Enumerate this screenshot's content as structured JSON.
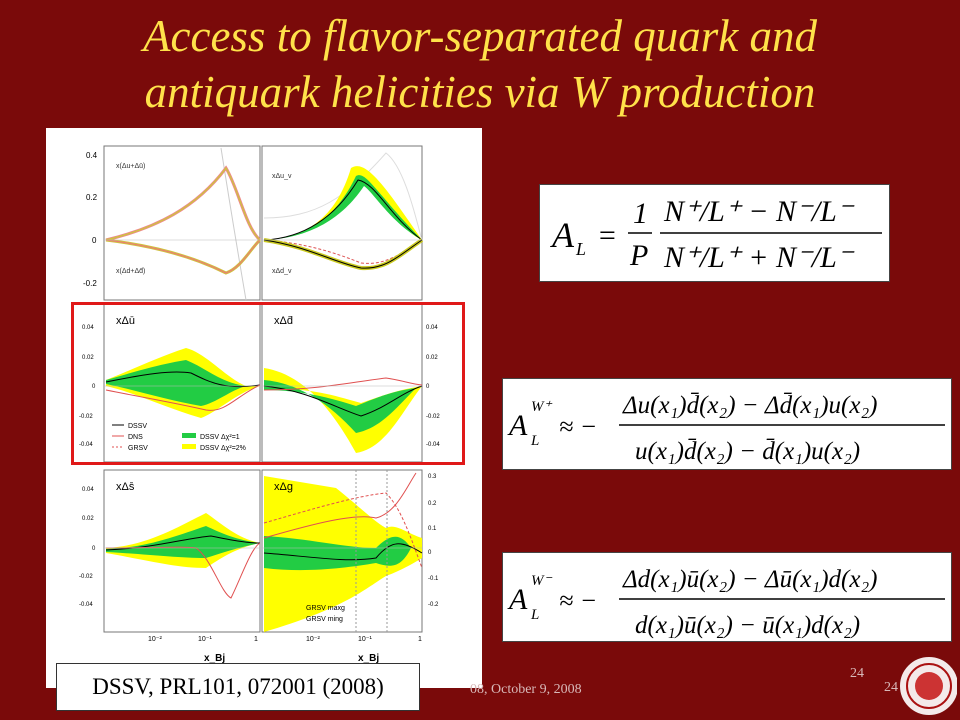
{
  "slide": {
    "title_line1": "Access to flavor-separated quark and",
    "title_line2": "antiquark helicities via W production",
    "caption": "DSSV, PRL101, 072001 (2008)",
    "footer_text": "08, October 9, 2008",
    "page_number_small": "24",
    "page_number_partial": "24"
  },
  "figure": {
    "panels": [
      {
        "label": "x(Δu+Δū)"
      },
      {
        "label": "x(Δd+Δd̄)"
      },
      {
        "label": "xΔu_v"
      },
      {
        "label": "xΔd_v"
      },
      {
        "label": "xΔū"
      },
      {
        "label": "xΔd̄"
      },
      {
        "label": "xΔs̄"
      },
      {
        "label": "xΔg"
      }
    ],
    "left_ticks_top": [
      "0.4",
      "0.2",
      "0",
      "-0.2"
    ],
    "left_ticks_mid": [
      "0.04",
      "0.02",
      "0",
      "-0.02",
      "-0.04"
    ],
    "right_ticks_g": [
      "0.3",
      "0.2",
      "0.1",
      "0",
      "-0.1",
      "-0.2"
    ],
    "x_ticks": [
      "10⁻²",
      "10⁻¹",
      "1"
    ],
    "x_axis_label": "x_Bj",
    "legend_lines": [
      "DSSV",
      "DNS",
      "GRSV"
    ],
    "legend_bands": [
      "DSSV Δχ²=1",
      "DSSV Δχ²=2%"
    ],
    "legend_g": [
      "GRSV maxg",
      "GRSV ming"
    ],
    "colors": {
      "band_outer": "#ffff00",
      "band_inner": "#00cc33",
      "dssv": "#000000",
      "dns": "#e05050",
      "grsv": "#e05050"
    }
  },
  "equations": {
    "AL": {
      "lhs": "A_L",
      "prefactor": "1/P",
      "num": "N⁺/L⁺ − N⁻/L⁻",
      "den": "N⁺/L⁺ + N⁻/L⁻"
    },
    "AW_plus": {
      "lhs": "A_L^{W⁺}",
      "num": "Δu(x₁)d̄(x₂) − Δd̄(x₁)u(x₂)",
      "den": "u(x₁)d̄(x₂) − d̄(x₁)u(x₂)"
    },
    "AW_minus": {
      "lhs": "A_L^{W⁻}",
      "num": "Δd(x₁)ū(x₂) − Δū(x₁)d(x₂)",
      "den": "d(x₁)ū(x₂) − ū(x₁)d(x₂)"
    }
  }
}
